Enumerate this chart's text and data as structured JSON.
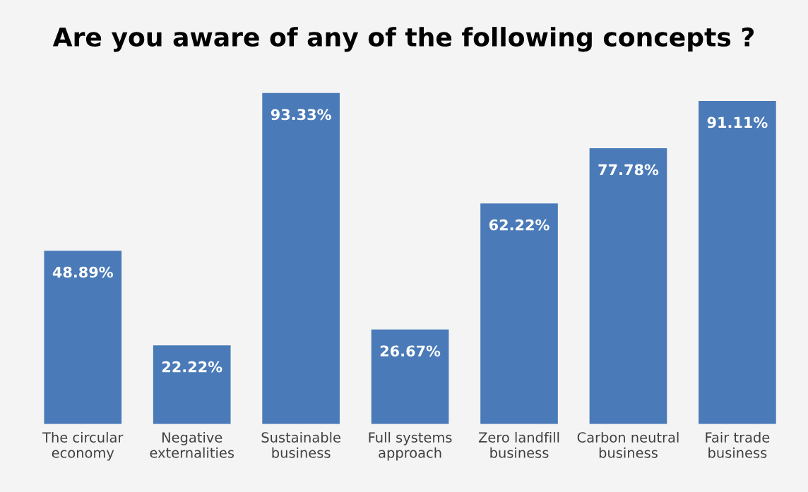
{
  "chart_data": {
    "type": "bar",
    "title": "Are you aware of any of the following concepts ?",
    "categories": [
      "The circular\neconomy",
      "Negative\nexternalities",
      "Sustainable\nbusiness",
      "Full systems\napproach",
      "Zero landfill\nbusiness",
      "Carbon neutral\nbusiness",
      "Fair trade\nbusiness"
    ],
    "values": [
      48.89,
      22.22,
      93.33,
      26.67,
      62.22,
      77.78,
      91.11
    ],
    "value_labels": [
      "48.89%",
      "22.22%",
      "93.33%",
      "26.67%",
      "62.22%",
      "77.78%",
      "91.11%"
    ],
    "color": "#4a7ab8",
    "grid": false,
    "legend": false
  }
}
